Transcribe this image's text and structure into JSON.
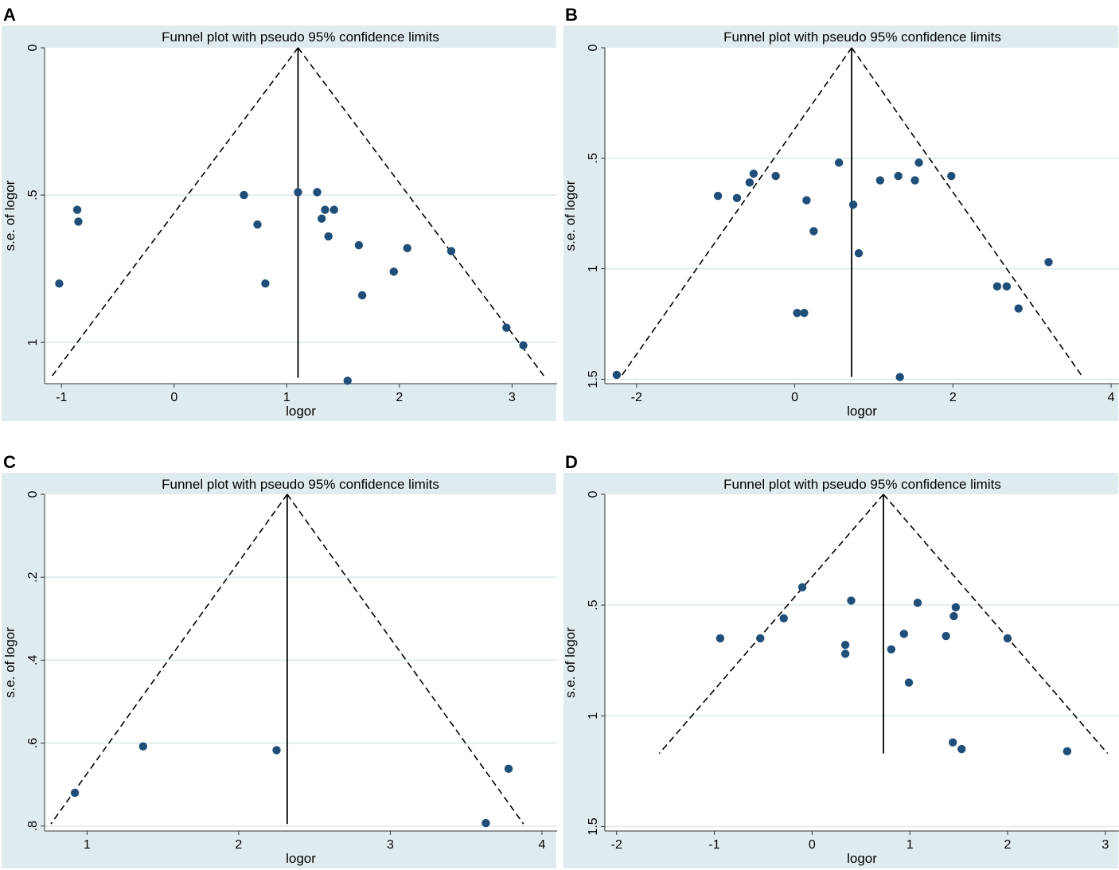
{
  "chart_data": [
    {
      "panel_label": "A",
      "type": "scatter",
      "title": "Funnel plot with pseudo 95% confidence limits",
      "xlabel": "logor",
      "ylabel": "s.e. of logor",
      "xlim": [
        -1.15,
        3.4
      ],
      "ylim": [
        0,
        1.14
      ],
      "y_reversed": true,
      "xticks": [
        -1,
        0,
        1,
        2,
        3
      ],
      "xtick_labels": [
        "-1",
        "0",
        "1",
        "2",
        "3"
      ],
      "yticks": [
        0,
        0.5,
        1
      ],
      "ytick_labels": [
        "0",
        ".5",
        "1"
      ],
      "pooled_estimate": 1.1,
      "se_max": 1.12,
      "points": [
        {
          "x": -1.02,
          "y": 0.8
        },
        {
          "x": -0.86,
          "y": 0.55
        },
        {
          "x": -0.85,
          "y": 0.59
        },
        {
          "x": 0.62,
          "y": 0.5
        },
        {
          "x": 0.74,
          "y": 0.6
        },
        {
          "x": 0.81,
          "y": 0.8
        },
        {
          "x": 1.1,
          "y": 0.49
        },
        {
          "x": 1.27,
          "y": 0.49
        },
        {
          "x": 1.31,
          "y": 0.58
        },
        {
          "x": 1.34,
          "y": 0.55
        },
        {
          "x": 1.37,
          "y": 0.64
        },
        {
          "x": 1.42,
          "y": 0.55
        },
        {
          "x": 1.64,
          "y": 0.67
        },
        {
          "x": 1.67,
          "y": 0.84
        },
        {
          "x": 1.95,
          "y": 0.76
        },
        {
          "x": 2.07,
          "y": 0.68
        },
        {
          "x": 2.46,
          "y": 0.69
        },
        {
          "x": 2.95,
          "y": 0.95
        },
        {
          "x": 3.1,
          "y": 1.01
        },
        {
          "x": 1.54,
          "y": 1.13
        }
      ]
    },
    {
      "panel_label": "B",
      "type": "scatter",
      "title": "Funnel plot with pseudo 95% confidence limits",
      "xlabel": "logor",
      "ylabel": "s.e. of logor",
      "xlim": [
        -2.4,
        4.1
      ],
      "ylim": [
        0,
        1.52
      ],
      "y_reversed": true,
      "xticks": [
        -2,
        0,
        2,
        4
      ],
      "xtick_labels": [
        "-2",
        "0",
        "2",
        "4"
      ],
      "yticks": [
        0,
        0.5,
        1,
        1.5
      ],
      "ytick_labels": [
        "0",
        ".5",
        "1",
        "1.5"
      ],
      "pooled_estimate": 0.72,
      "se_max": 1.49,
      "points": [
        {
          "x": -2.25,
          "y": 1.48
        },
        {
          "x": -0.97,
          "y": 0.67
        },
        {
          "x": -0.73,
          "y": 0.68
        },
        {
          "x": -0.57,
          "y": 0.61
        },
        {
          "x": -0.52,
          "y": 0.57
        },
        {
          "x": -0.24,
          "y": 0.58
        },
        {
          "x": 0.15,
          "y": 0.69
        },
        {
          "x": 0.24,
          "y": 0.83
        },
        {
          "x": 0.03,
          "y": 1.2
        },
        {
          "x": 0.12,
          "y": 1.2
        },
        {
          "x": 0.56,
          "y": 0.52
        },
        {
          "x": 0.74,
          "y": 0.71
        },
        {
          "x": 0.81,
          "y": 0.93
        },
        {
          "x": 1.08,
          "y": 0.6
        },
        {
          "x": 1.31,
          "y": 0.58
        },
        {
          "x": 1.52,
          "y": 0.6
        },
        {
          "x": 1.57,
          "y": 0.52
        },
        {
          "x": 1.98,
          "y": 0.58
        },
        {
          "x": 1.33,
          "y": 1.49
        },
        {
          "x": 2.56,
          "y": 1.08
        },
        {
          "x": 2.68,
          "y": 1.08
        },
        {
          "x": 2.83,
          "y": 1.18
        },
        {
          "x": 3.21,
          "y": 0.97
        }
      ]
    },
    {
      "panel_label": "C",
      "type": "scatter",
      "title": "Funnel plot with pseudo 95% confidence limits",
      "xlabel": "logor",
      "ylabel": "s.e. of logor",
      "xlim": [
        0.72,
        4.1
      ],
      "ylim": [
        0,
        0.812
      ],
      "y_reversed": true,
      "xticks": [
        1,
        2,
        3,
        4
      ],
      "xtick_labels": [
        "1",
        "2",
        "3",
        "4"
      ],
      "yticks": [
        0,
        0.2,
        0.4,
        0.6,
        0.8
      ],
      "ytick_labels": [
        "0",
        ".2",
        ".4",
        ".6",
        ".8"
      ],
      "pooled_estimate": 2.32,
      "se_max": 0.795,
      "points": [
        {
          "x": 0.92,
          "y": 0.72
        },
        {
          "x": 1.37,
          "y": 0.608
        },
        {
          "x": 2.25,
          "y": 0.617
        },
        {
          "x": 3.63,
          "y": 0.793
        },
        {
          "x": 3.78,
          "y": 0.662
        }
      ]
    },
    {
      "panel_label": "D",
      "type": "scatter",
      "title": "Funnel plot with pseudo 95% confidence limits",
      "xlabel": "logor",
      "ylabel": "s.e. of logor",
      "xlim": [
        -2.12,
        3.14
      ],
      "ylim": [
        0,
        1.52
      ],
      "y_reversed": true,
      "xticks": [
        -2,
        -1,
        0,
        1,
        2,
        3
      ],
      "xtick_labels": [
        "-2",
        "-1",
        "0",
        "1",
        "2",
        "3"
      ],
      "yticks": [
        0,
        0.5,
        1,
        1.5
      ],
      "ytick_labels": [
        "0",
        ".5",
        "1",
        "1.5"
      ],
      "pooled_estimate": 0.73,
      "se_max": 1.17,
      "points": [
        {
          "x": -0.94,
          "y": 0.65
        },
        {
          "x": -0.53,
          "y": 0.65
        },
        {
          "x": -0.29,
          "y": 0.56
        },
        {
          "x": -0.1,
          "y": 0.42
        },
        {
          "x": 0.34,
          "y": 0.68
        },
        {
          "x": 0.34,
          "y": 0.72
        },
        {
          "x": 0.4,
          "y": 0.48
        },
        {
          "x": 0.81,
          "y": 0.7
        },
        {
          "x": 0.94,
          "y": 0.63
        },
        {
          "x": 0.99,
          "y": 0.85
        },
        {
          "x": 1.08,
          "y": 0.49
        },
        {
          "x": 1.37,
          "y": 0.64
        },
        {
          "x": 1.45,
          "y": 0.55
        },
        {
          "x": 1.47,
          "y": 0.51
        },
        {
          "x": 1.44,
          "y": 1.12
        },
        {
          "x": 1.53,
          "y": 1.15
        },
        {
          "x": 2.0,
          "y": 0.65
        },
        {
          "x": 2.61,
          "y": 1.16
        }
      ]
    }
  ],
  "style": {
    "panel_background": "#dfecef",
    "title_band": "#dbe8eb",
    "plot_background": "#ffffff",
    "gridline": "#dbe8eb",
    "marker": "#1f4e79",
    "line": "#000000"
  }
}
